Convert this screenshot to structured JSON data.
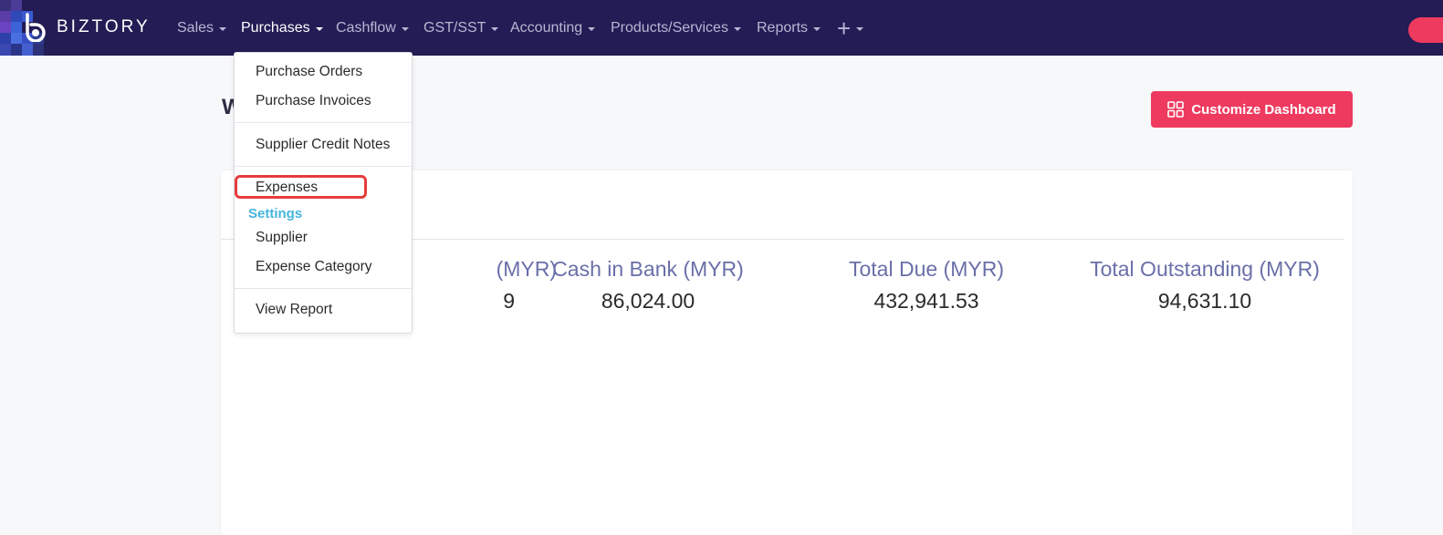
{
  "brand": {
    "name": "BIZTORY"
  },
  "nav": {
    "items": [
      {
        "label": "Sales"
      },
      {
        "label": "Purchases"
      },
      {
        "label": "Cashflow"
      },
      {
        "label": "GST/SST"
      },
      {
        "label": "Accounting"
      },
      {
        "label": "Products/Services"
      },
      {
        "label": "Reports"
      }
    ],
    "active": "Purchases",
    "plus_icon": "plus-icon"
  },
  "page": {
    "heading": "W",
    "customize_label": "Customize Dashboard"
  },
  "stats": [
    {
      "label": "(MYR)",
      "value": "9"
    },
    {
      "label": "Cash in Bank (MYR)",
      "value": "86,024.00"
    },
    {
      "label": "Total Due (MYR)",
      "value": "432,941.53"
    },
    {
      "label": "Total Outstanding (MYR)",
      "value": "94,631.10"
    }
  ],
  "dropdown": {
    "purchase_orders": "Purchase Orders",
    "purchase_invoices": "Purchase Invoices",
    "supplier_credit_notes": "Supplier Credit Notes",
    "expenses": "Expenses",
    "settings_header": "Settings",
    "supplier": "Supplier",
    "expense_category": "Expense Category",
    "view_report": "View Report"
  },
  "colors": {
    "navbar": "#231c55",
    "accent": "#ee3a5f",
    "settings_header": "#45b5dd",
    "highlight": "#e63c3c",
    "stat_label": "#6a6fa8"
  }
}
